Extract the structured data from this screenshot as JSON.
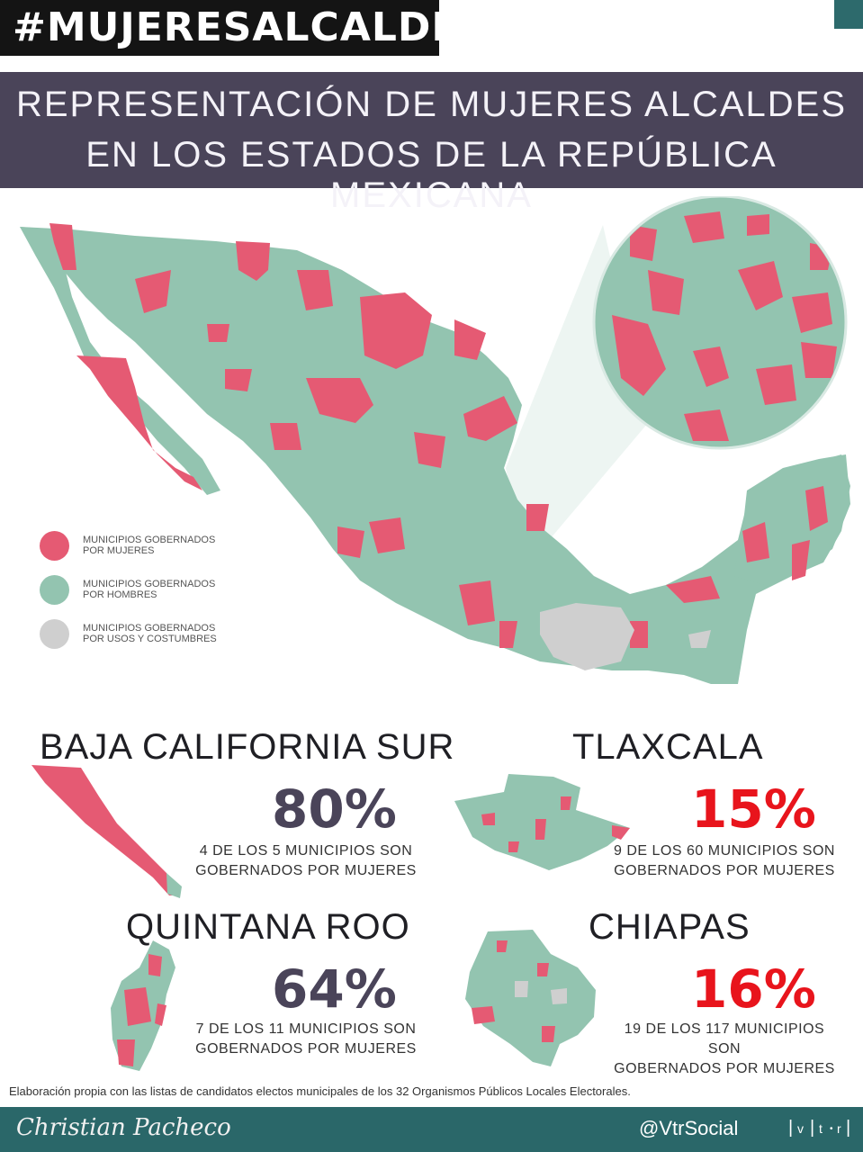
{
  "hashtag": "#MUJERESALCALDESAS",
  "title": {
    "line1": "REPRESENTACIÓN DE MUJERES ALCALDES",
    "line2": "EN LOS ESTADOS DE LA REPÚBLICA MEXICANA"
  },
  "colors": {
    "women": "#e55a73",
    "men": "#93c4b0",
    "customs": "#cfcfcf",
    "title_band": "#4a4459",
    "footer": "#2a6769",
    "pct_dark": "#4a4459",
    "pct_red": "#e8141c"
  },
  "legend": [
    {
      "key": "women",
      "line1": "MUNICIPIOS GOBERNADOS",
      "line2": "POR MUJERES"
    },
    {
      "key": "men",
      "line1": "MUNICIPIOS GOBERNADOS",
      "line2": "POR HOMBRES"
    },
    {
      "key": "customs",
      "line1": "MUNICIPIOS GOBERNADOS",
      "line2": "POR USOS Y COSTUMBRES"
    }
  ],
  "states": [
    {
      "name": "BAJA CALIFORNIA SUR",
      "percent": "80%",
      "desc1": "4 DE LOS 5 MUNICIPIOS SON",
      "desc2": "GOBERNADOS POR MUJERES"
    },
    {
      "name": "TLAXCALA",
      "percent": "15%",
      "desc1": "9 DE LOS 60 MUNICIPIOS SON",
      "desc2": "GOBERNADOS POR MUJERES"
    },
    {
      "name": "QUINTANA ROO",
      "percent": "64%",
      "desc1": "7 DE LOS 11 MUNICIPIOS SON",
      "desc2": "GOBERNADOS POR MUJERES"
    },
    {
      "name": "CHIAPAS",
      "percent": "16%",
      "desc1": "19 DE LOS 117 MUNICIPIOS SON",
      "desc2": "GOBERNADOS POR MUJERES"
    }
  ],
  "source": "Elaboración propia con las listas de candidatos electos municipales de los 32 Organismos Públicos Locales Electorales.",
  "footer": {
    "signature": "Christian Pacheco",
    "handle": "@VtrSocial",
    "logo": {
      "v": "v",
      "t": "t",
      "r": "r"
    }
  }
}
